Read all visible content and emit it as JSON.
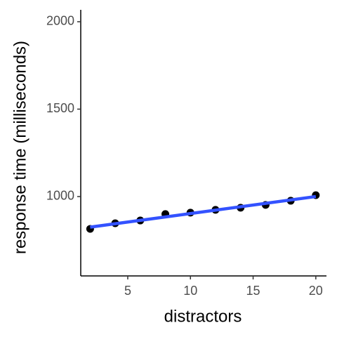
{
  "chart_data": {
    "type": "scatter",
    "x_label": "distractors",
    "y_label": "response time (milliseconds)",
    "x": [
      2,
      4,
      6,
      8,
      10,
      12,
      14,
      16,
      18,
      20
    ],
    "values": [
      815,
      847,
      863,
      900,
      908,
      924,
      936,
      952,
      976,
      1008
    ],
    "color": "#000000",
    "fit_line": {
      "x": [
        2,
        20
      ],
      "values": [
        825,
        1000
      ],
      "color": "#3352ff"
    },
    "xlim": [
      1.25,
      20.85
    ],
    "ylim": [
      546,
      2068
    ],
    "xticks": [
      5,
      10,
      15,
      20
    ],
    "yticks": [
      1000,
      1500,
      2000
    ]
  }
}
